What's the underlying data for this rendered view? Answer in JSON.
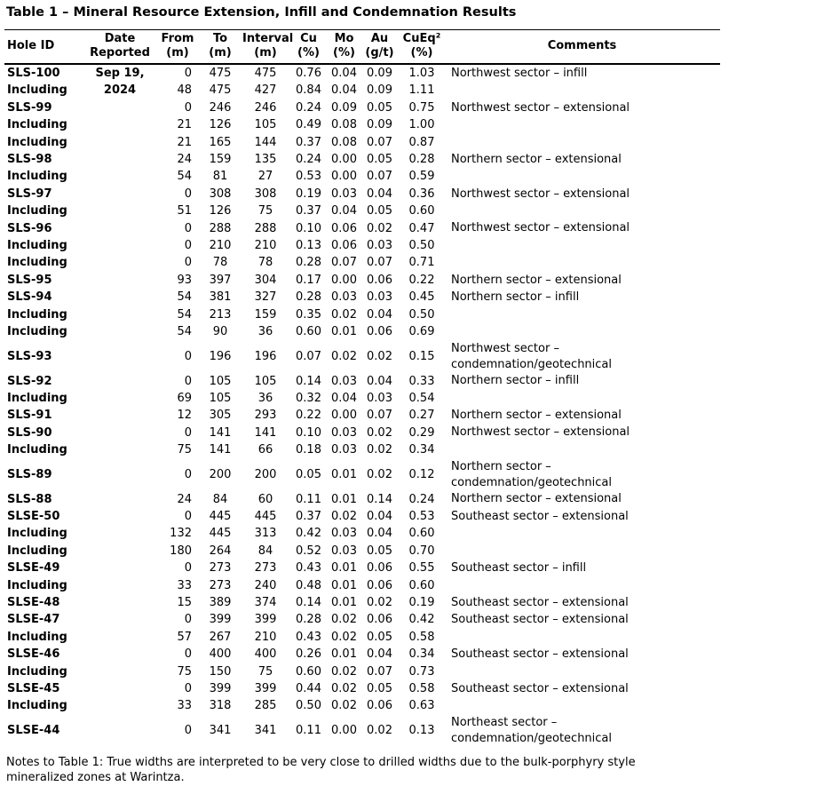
{
  "title": "Table 1 – Mineral Resource Extension, Infill and Condemnation Results",
  "table": {
    "headers": [
      "Hole ID",
      "Date\nReported",
      "From\n(m)",
      "To\n(m)",
      "Interval\n(m)",
      "Cu\n(%)",
      "Mo\n(%)",
      "Au\n(g/t)",
      "CuEq²\n(%)",
      "Comments"
    ],
    "rows": [
      {
        "hole_id": "SLS-100",
        "date": "Sep 19,",
        "from": "0",
        "to": "475",
        "interval": "475",
        "cu": "0.76",
        "mo": "0.04",
        "au": "0.09",
        "cueq": "1.03",
        "comments": "Northwest sector – infill"
      },
      {
        "hole_id": "Including",
        "date": "2024",
        "from": "48",
        "to": "475",
        "interval": "427",
        "cu": "0.84",
        "mo": "0.04",
        "au": "0.09",
        "cueq": "1.11",
        "comments": ""
      },
      {
        "hole_id": "SLS-99",
        "date": "",
        "from": "0",
        "to": "246",
        "interval": "246",
        "cu": "0.24",
        "mo": "0.09",
        "au": "0.05",
        "cueq": "0.75",
        "comments": "Northwest sector – extensional"
      },
      {
        "hole_id": "Including",
        "date": "",
        "from": "21",
        "to": "126",
        "interval": "105",
        "cu": "0.49",
        "mo": "0.08",
        "au": "0.09",
        "cueq": "1.00",
        "comments": ""
      },
      {
        "hole_id": "Including",
        "date": "",
        "from": "21",
        "to": "165",
        "interval": "144",
        "cu": "0.37",
        "mo": "0.08",
        "au": "0.07",
        "cueq": "0.87",
        "comments": ""
      },
      {
        "hole_id": "SLS-98",
        "date": "",
        "from": "24",
        "to": "159",
        "interval": "135",
        "cu": "0.24",
        "mo": "0.00",
        "au": "0.05",
        "cueq": "0.28",
        "comments": "Northern sector – extensional"
      },
      {
        "hole_id": "Including",
        "date": "",
        "from": "54",
        "to": "81",
        "interval": "27",
        "cu": "0.53",
        "mo": "0.00",
        "au": "0.07",
        "cueq": "0.59",
        "comments": ""
      },
      {
        "hole_id": "SLS-97",
        "date": "",
        "from": "0",
        "to": "308",
        "interval": "308",
        "cu": "0.19",
        "mo": "0.03",
        "au": "0.04",
        "cueq": "0.36",
        "comments": "Northwest sector – extensional"
      },
      {
        "hole_id": "Including",
        "date": "",
        "from": "51",
        "to": "126",
        "interval": "75",
        "cu": "0.37",
        "mo": "0.04",
        "au": "0.05",
        "cueq": "0.60",
        "comments": ""
      },
      {
        "hole_id": "SLS-96",
        "date": "",
        "from": "0",
        "to": "288",
        "interval": "288",
        "cu": "0.10",
        "mo": "0.06",
        "au": "0.02",
        "cueq": "0.47",
        "comments": "Northwest sector – extensional"
      },
      {
        "hole_id": "Including",
        "date": "",
        "from": "0",
        "to": "210",
        "interval": "210",
        "cu": "0.13",
        "mo": "0.06",
        "au": "0.03",
        "cueq": "0.50",
        "comments": ""
      },
      {
        "hole_id": "Including",
        "date": "",
        "from": "0",
        "to": "78",
        "interval": "78",
        "cu": "0.28",
        "mo": "0.07",
        "au": "0.07",
        "cueq": "0.71",
        "comments": ""
      },
      {
        "hole_id": "SLS-95",
        "date": "",
        "from": "93",
        "to": "397",
        "interval": "304",
        "cu": "0.17",
        "mo": "0.00",
        "au": "0.06",
        "cueq": "0.22",
        "comments": "Northern sector – extensional"
      },
      {
        "hole_id": "SLS-94",
        "date": "",
        "from": "54",
        "to": "381",
        "interval": "327",
        "cu": "0.28",
        "mo": "0.03",
        "au": "0.03",
        "cueq": "0.45",
        "comments": "Northern sector – infill"
      },
      {
        "hole_id": "Including",
        "date": "",
        "from": "54",
        "to": "213",
        "interval": "159",
        "cu": "0.35",
        "mo": "0.02",
        "au": "0.04",
        "cueq": "0.50",
        "comments": ""
      },
      {
        "hole_id": "Including",
        "date": "",
        "from": "54",
        "to": "90",
        "interval": "36",
        "cu": "0.60",
        "mo": "0.01",
        "au": "0.06",
        "cueq": "0.69",
        "comments": ""
      },
      {
        "hole_id": "SLS-93",
        "date": "",
        "from": "0",
        "to": "196",
        "interval": "196",
        "cu": "0.07",
        "mo": "0.02",
        "au": "0.02",
        "cueq": "0.15",
        "comments": "Northwest sector –\ncondemnation/geotechnical"
      },
      {
        "hole_id": "SLS-92",
        "date": "",
        "from": "0",
        "to": "105",
        "interval": "105",
        "cu": "0.14",
        "mo": "0.03",
        "au": "0.04",
        "cueq": "0.33",
        "comments": "Northern sector – infill"
      },
      {
        "hole_id": "Including",
        "date": "",
        "from": "69",
        "to": "105",
        "interval": "36",
        "cu": "0.32",
        "mo": "0.04",
        "au": "0.03",
        "cueq": "0.54",
        "comments": ""
      },
      {
        "hole_id": "SLS-91",
        "date": "",
        "from": "12",
        "to": "305",
        "interval": "293",
        "cu": "0.22",
        "mo": "0.00",
        "au": "0.07",
        "cueq": "0.27",
        "comments": "Northern sector – extensional"
      },
      {
        "hole_id": "SLS-90",
        "date": "",
        "from": "0",
        "to": "141",
        "interval": "141",
        "cu": "0.10",
        "mo": "0.03",
        "au": "0.02",
        "cueq": "0.29",
        "comments": "Northwest sector – extensional"
      },
      {
        "hole_id": "Including",
        "date": "",
        "from": "75",
        "to": "141",
        "interval": "66",
        "cu": "0.18",
        "mo": "0.03",
        "au": "0.02",
        "cueq": "0.34",
        "comments": ""
      },
      {
        "hole_id": "SLS-89",
        "date": "",
        "from": "0",
        "to": "200",
        "interval": "200",
        "cu": "0.05",
        "mo": "0.01",
        "au": "0.02",
        "cueq": "0.12",
        "comments": "Northern sector –\ncondemnation/geotechnical"
      },
      {
        "hole_id": "SLS-88",
        "date": "",
        "from": "24",
        "to": "84",
        "interval": "60",
        "cu": "0.11",
        "mo": "0.01",
        "au": "0.14",
        "cueq": "0.24",
        "comments": "Northern sector – extensional"
      },
      {
        "hole_id": "SLSE-50",
        "date": "",
        "from": "0",
        "to": "445",
        "interval": "445",
        "cu": "0.37",
        "mo": "0.02",
        "au": "0.04",
        "cueq": "0.53",
        "comments": "Southeast sector – extensional"
      },
      {
        "hole_id": "Including",
        "date": "",
        "from": "132",
        "to": "445",
        "interval": "313",
        "cu": "0.42",
        "mo": "0.03",
        "au": "0.04",
        "cueq": "0.60",
        "comments": ""
      },
      {
        "hole_id": "Including",
        "date": "",
        "from": "180",
        "to": "264",
        "interval": "84",
        "cu": "0.52",
        "mo": "0.03",
        "au": "0.05",
        "cueq": "0.70",
        "comments": ""
      },
      {
        "hole_id": "SLSE-49",
        "date": "",
        "from": "0",
        "to": "273",
        "interval": "273",
        "cu": "0.43",
        "mo": "0.01",
        "au": "0.06",
        "cueq": "0.55",
        "comments": "Southeast sector – infill"
      },
      {
        "hole_id": "Including",
        "date": "",
        "from": "33",
        "to": "273",
        "interval": "240",
        "cu": "0.48",
        "mo": "0.01",
        "au": "0.06",
        "cueq": "0.60",
        "comments": ""
      },
      {
        "hole_id": "SLSE-48",
        "date": "",
        "from": "15",
        "to": "389",
        "interval": "374",
        "cu": "0.14",
        "mo": "0.01",
        "au": "0.02",
        "cueq": "0.19",
        "comments": "Southeast sector – extensional"
      },
      {
        "hole_id": "SLSE-47",
        "date": "",
        "from": "0",
        "to": "399",
        "interval": "399",
        "cu": "0.28",
        "mo": "0.02",
        "au": "0.06",
        "cueq": "0.42",
        "comments": "Southeast sector – extensional"
      },
      {
        "hole_id": "Including",
        "date": "",
        "from": "57",
        "to": "267",
        "interval": "210",
        "cu": "0.43",
        "mo": "0.02",
        "au": "0.05",
        "cueq": "0.58",
        "comments": ""
      },
      {
        "hole_id": "SLSE-46",
        "date": "",
        "from": "0",
        "to": "400",
        "interval": "400",
        "cu": "0.26",
        "mo": "0.01",
        "au": "0.04",
        "cueq": "0.34",
        "comments": "Southeast sector – extensional"
      },
      {
        "hole_id": "Including",
        "date": "",
        "from": "75",
        "to": "150",
        "interval": "75",
        "cu": "0.60",
        "mo": "0.02",
        "au": "0.07",
        "cueq": "0.73",
        "comments": ""
      },
      {
        "hole_id": "SLSE-45",
        "date": "",
        "from": "0",
        "to": "399",
        "interval": "399",
        "cu": "0.44",
        "mo": "0.02",
        "au": "0.05",
        "cueq": "0.58",
        "comments": "Southeast sector – extensional"
      },
      {
        "hole_id": "Including",
        "date": "",
        "from": "33",
        "to": "318",
        "interval": "285",
        "cu": "0.50",
        "mo": "0.02",
        "au": "0.06",
        "cueq": "0.63",
        "comments": ""
      },
      {
        "hole_id": "SLSE-44",
        "date": "",
        "from": "0",
        "to": "341",
        "interval": "341",
        "cu": "0.11",
        "mo": "0.00",
        "au": "0.02",
        "cueq": "0.13",
        "comments": "Northeast sector –\ncondemnation/geotechnical"
      }
    ]
  },
  "notes": "Notes to Table 1: True widths are interpreted to be very close to drilled widths due to the bulk-porphyry style\nmineralized zones at Warintza."
}
